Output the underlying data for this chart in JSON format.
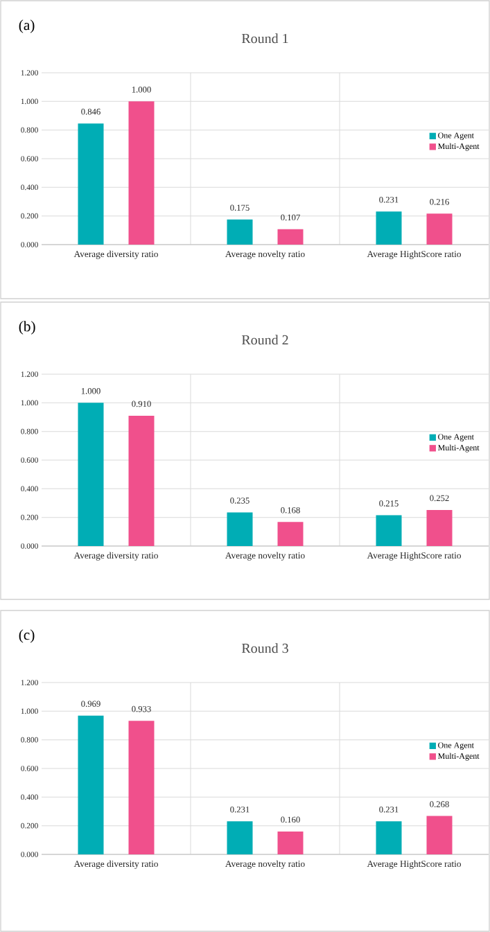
{
  "chart_data": [
    {
      "type": "bar",
      "title": "Round 1",
      "annotations": [
        "(a)"
      ],
      "categories": [
        "Average diversity ratio",
        "Average novelty ratio",
        "Average HightScore ratio"
      ],
      "series": [
        {
          "name": "One Agent",
          "color": "#00adb5",
          "values": [
            0.846,
            0.175,
            0.231
          ],
          "value_labels": [
            "0.846",
            "0.175",
            "0.231"
          ]
        },
        {
          "name": "Multi-Agent",
          "color": "#f0508c",
          "values": [
            1.0,
            0.107,
            0.216
          ],
          "value_labels": [
            "1.000",
            "0.107",
            "0.216"
          ]
        }
      ],
      "ylim": [
        0,
        1.2
      ],
      "yticks": [
        {
          "value": 0,
          "label": "0.000"
        },
        {
          "value": 0.2,
          "label": "0.200"
        },
        {
          "value": 0.4,
          "label": "0.400"
        },
        {
          "value": 0.6,
          "label": "0.600"
        },
        {
          "value": 0.8,
          "label": "0.800"
        },
        {
          "value": 1.0,
          "label": "1.000"
        },
        {
          "value": 1.2,
          "label": "1.200"
        }
      ],
      "grid": true,
      "legend": "right"
    },
    {
      "type": "bar",
      "title": "Round 2",
      "annotations": [
        "(b)"
      ],
      "categories": [
        "Average diversity ratio",
        "Average novelty ratio",
        "Average HightScore ratio"
      ],
      "series": [
        {
          "name": "One Agent",
          "color": "#00adb5",
          "values": [
            1.0,
            0.235,
            0.215
          ],
          "value_labels": [
            "1.000",
            "0.235",
            "0.215"
          ]
        },
        {
          "name": "Multi-Agent",
          "color": "#f0508c",
          "values": [
            0.91,
            0.168,
            0.252
          ],
          "value_labels": [
            "0.910",
            "0.168",
            "0.252"
          ]
        }
      ],
      "ylim": [
        0,
        1.2
      ],
      "yticks": [
        {
          "value": 0,
          "label": "0.000"
        },
        {
          "value": 0.2,
          "label": "0.200"
        },
        {
          "value": 0.4,
          "label": "0.400"
        },
        {
          "value": 0.6,
          "label": "0.600"
        },
        {
          "value": 0.8,
          "label": "0.800"
        },
        {
          "value": 1.0,
          "label": "1.000"
        },
        {
          "value": 1.2,
          "label": "1.200"
        }
      ],
      "grid": true,
      "legend": "right"
    },
    {
      "type": "bar",
      "title": "Round 3",
      "annotations": [
        "(c)"
      ],
      "categories": [
        "Average diversity ratio",
        "Average novelty ratio",
        "Average HightScore ratio"
      ],
      "series": [
        {
          "name": "One Agent",
          "color": "#00adb5",
          "values": [
            0.969,
            0.231,
            0.231
          ],
          "value_labels": [
            "0.969",
            "0.231",
            "0.231"
          ]
        },
        {
          "name": "Multi-Agent",
          "color": "#f0508c",
          "values": [
            0.933,
            0.16,
            0.268
          ],
          "value_labels": [
            "0.933",
            "0.160",
            "0.268"
          ]
        }
      ],
      "ylim": [
        0,
        1.2
      ],
      "yticks": [
        {
          "value": 0,
          "label": "0.000"
        },
        {
          "value": 0.2,
          "label": "0.200"
        },
        {
          "value": 0.4,
          "label": "0.400"
        },
        {
          "value": 0.6,
          "label": "0.600"
        },
        {
          "value": 0.8,
          "label": "0.800"
        },
        {
          "value": 1.0,
          "label": "1.000"
        },
        {
          "value": 1.2,
          "label": "1.200"
        }
      ],
      "grid": true,
      "legend": "right"
    }
  ]
}
